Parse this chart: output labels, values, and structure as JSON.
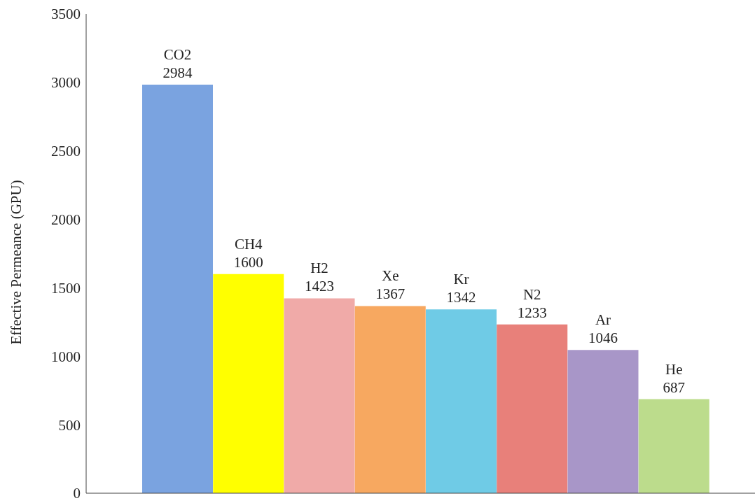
{
  "chart_data": {
    "type": "bar",
    "ylabel": "Effective Permeance (GPU)",
    "categories": [
      "CO2",
      "CH4",
      "H2",
      "Xe",
      "Kr",
      "N2",
      "Ar",
      "He"
    ],
    "values": [
      2984,
      1600,
      1423,
      1367,
      1342,
      1233,
      1046,
      687
    ],
    "colors": [
      "#7aa3e0",
      "#ffff00",
      "#f0aaa8",
      "#f7a860",
      "#6fcbe6",
      "#e8807a",
      "#a896c8",
      "#bcdc8c"
    ],
    "ylim": [
      0,
      3500
    ],
    "yticks": [
      0,
      500,
      1000,
      1500,
      2000,
      2500,
      3000,
      3500
    ],
    "data_labels": true,
    "tick_labels": "y",
    "grid": false
  }
}
